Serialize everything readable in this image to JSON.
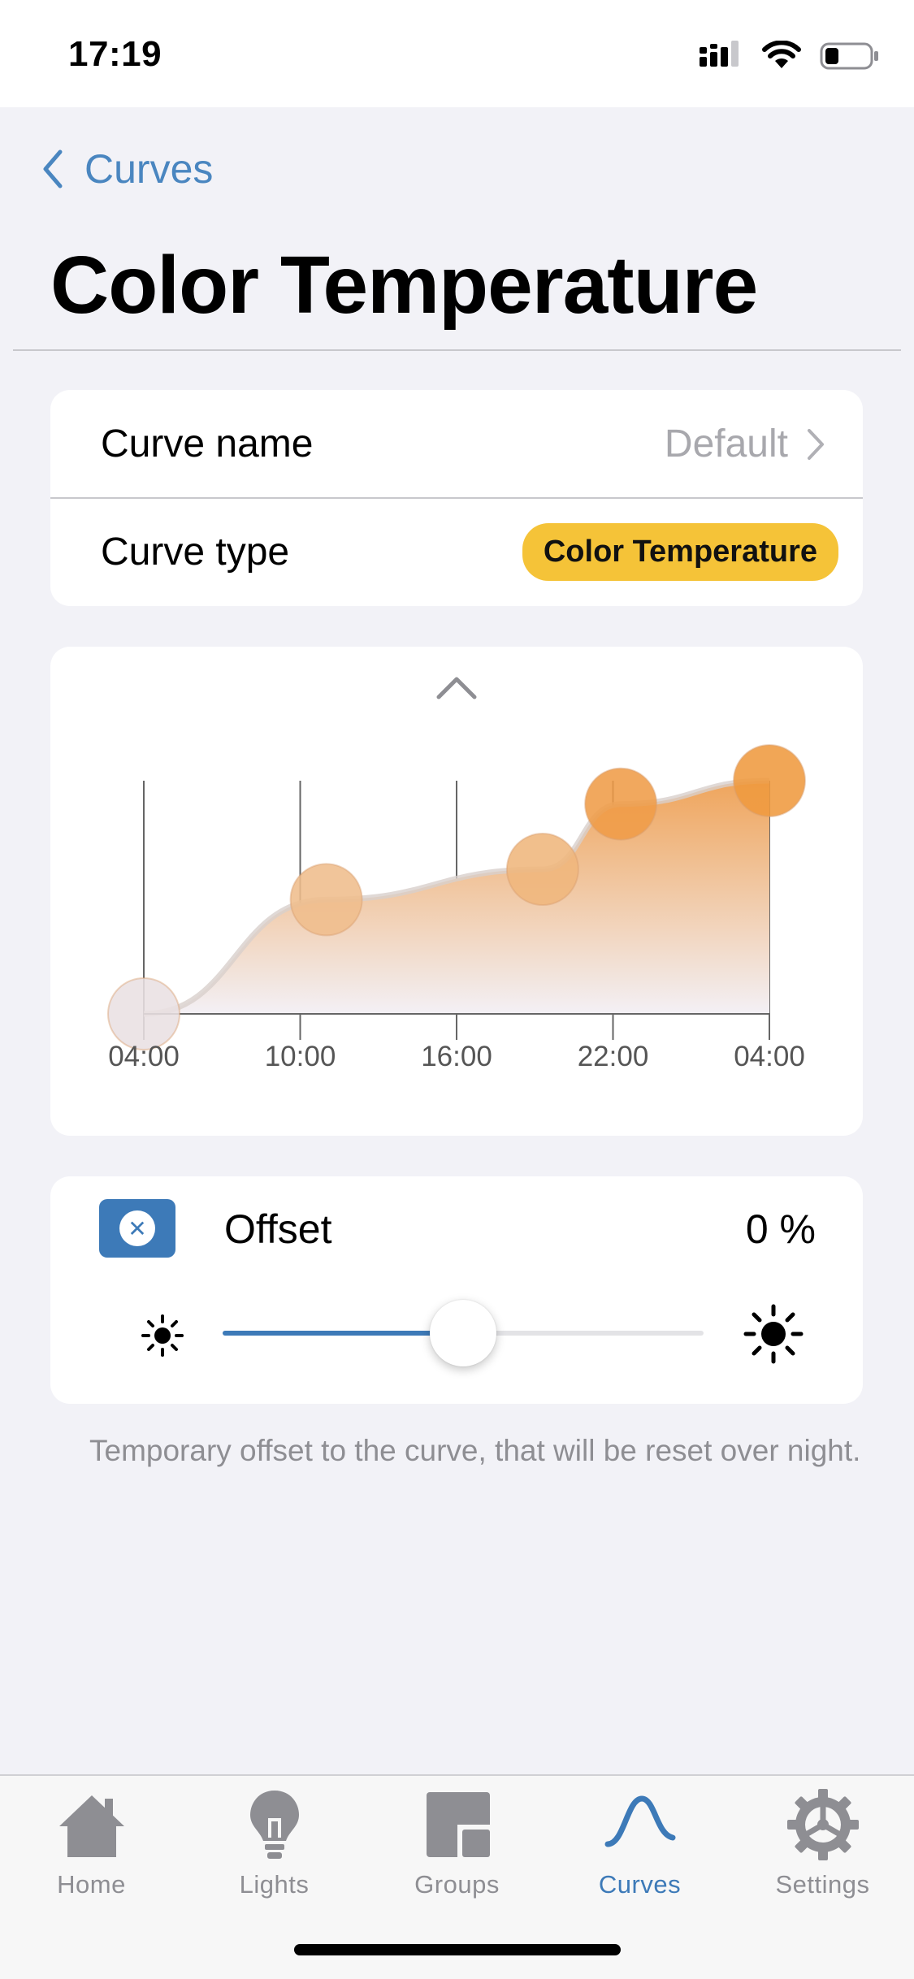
{
  "status_bar": {
    "time": "17:19"
  },
  "nav": {
    "back_label": "Curves",
    "title": "Color Temperature"
  },
  "info": {
    "curve_name_label": "Curve name",
    "curve_name_value": "Default",
    "curve_type_label": "Curve type",
    "curve_type_value": "Color Temperature"
  },
  "chart_data": {
    "type": "area",
    "title": "",
    "xlabel": "",
    "ylabel": "",
    "x_ticks": [
      "04:00",
      "10:00",
      "16:00",
      "22:00",
      "04:00"
    ],
    "x_range": [
      0,
      24
    ],
    "ylim": [
      0,
      100
    ],
    "points": [
      {
        "x": 0,
        "y": 0
      },
      {
        "x": 7,
        "y": 49
      },
      {
        "x": 15.3,
        "y": 62
      },
      {
        "x": 18.3,
        "y": 90
      },
      {
        "x": 24,
        "y": 100
      }
    ],
    "point_colors": [
      "#e9e0e3",
      "#efbd8c",
      "#efb67c",
      "#ef9c48",
      "#ef9a3f"
    ],
    "fill_top_color": "#efa55c",
    "fill_bottom_color": "#f3f0f5"
  },
  "offset": {
    "label": "Offset",
    "value_text": "0 %",
    "slider_fraction": 0.5,
    "footnote": "Temporary offset to the curve, that will be reset over night."
  },
  "tabs": [
    {
      "label": "Home",
      "icon": "home-icon",
      "active": false
    },
    {
      "label": "Lights",
      "icon": "bulb-icon",
      "active": false
    },
    {
      "label": "Groups",
      "icon": "groups-icon",
      "active": false
    },
    {
      "label": "Curves",
      "icon": "curve-icon",
      "active": true
    },
    {
      "label": "Settings",
      "icon": "gear-icon",
      "active": false
    }
  ],
  "colors": {
    "accent": "#3d7ab8",
    "badge": "#f5c338",
    "background": "#f2f2f7"
  }
}
